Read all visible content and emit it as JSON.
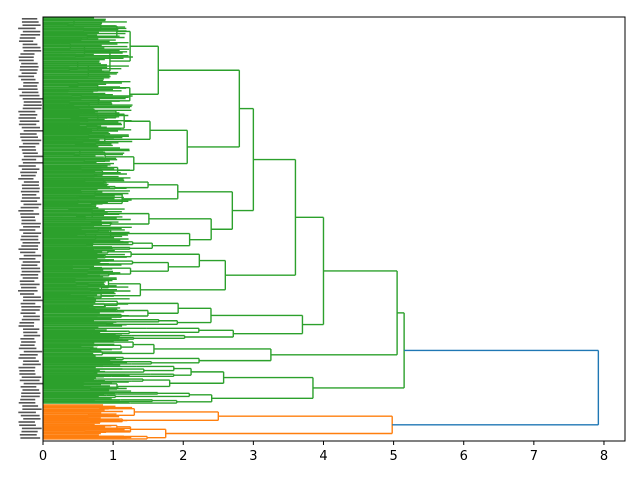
{
  "chart_data": {
    "type": "dendrogram",
    "orientation": "right",
    "title": "",
    "xlabel": "",
    "ylabel": "",
    "xlim": [
      0,
      8.3
    ],
    "x_ticks": [
      0,
      1,
      2,
      3,
      4,
      5,
      6,
      7,
      8
    ],
    "x_tick_labels": [
      "0",
      "1",
      "2",
      "3",
      "4",
      "5",
      "6",
      "7",
      "8"
    ],
    "grid": false,
    "colors": {
      "root": "#1f77b4",
      "cluster_a": "#2ca02c",
      "cluster_b": "#ff7f0e"
    },
    "clusters": [
      {
        "color_key": "cluster_a",
        "leaf_fraction": 0.88,
        "top_merges": [
          2.6,
          2.8,
          3.0,
          3.25,
          3.6,
          3.75,
          4.0,
          5.05,
          3.25,
          3.85,
          5.15
        ]
      },
      {
        "color_key": "cluster_b",
        "leaf_fraction": 0.12,
        "top_merges": [
          2.5,
          1.75,
          4.98
        ]
      }
    ],
    "root_merge": 7.92
  }
}
